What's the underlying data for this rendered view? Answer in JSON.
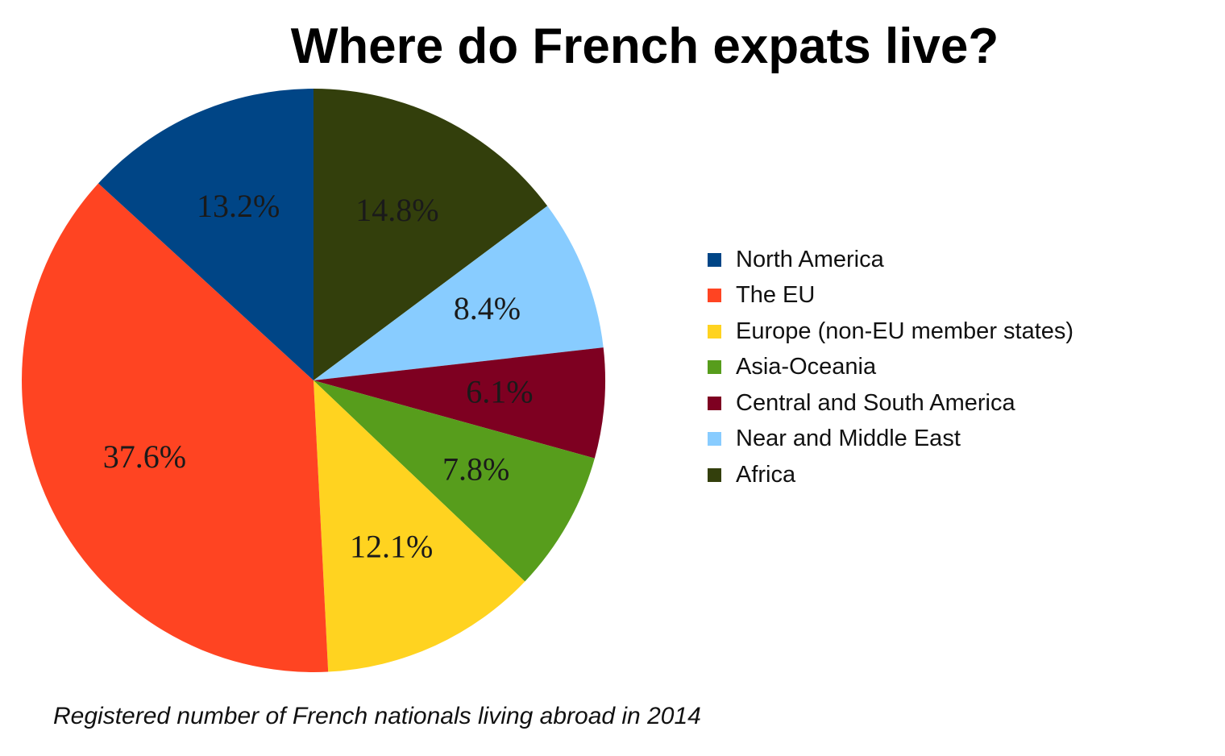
{
  "chart_data": {
    "type": "pie",
    "title": "Where do French expats live?",
    "caption": "Registered number of French nationals living abroad in 2014",
    "legend_position": "right",
    "start_angle_deg": 0,
    "direction": "clockwise",
    "slices": [
      {
        "label": "Africa",
        "value": 14.8,
        "value_label": "14.8%",
        "color": "#333F0C"
      },
      {
        "label": "Near and Middle East",
        "value": 8.4,
        "value_label": "8.4%",
        "color": "#88CCFF"
      },
      {
        "label": "Central and South America",
        "value": 6.1,
        "value_label": "6.1%",
        "color": "#7E0021"
      },
      {
        "label": "Asia-Oceania",
        "value": 7.8,
        "value_label": "7.8%",
        "color": "#579D1C"
      },
      {
        "label": "Europe (non-EU member states)",
        "value": 12.1,
        "value_label": "12.1%",
        "color": "#FFD320"
      },
      {
        "label": "The EU",
        "value": 37.6,
        "value_label": "37.6%",
        "color": "#FF4422"
      },
      {
        "label": "North America",
        "value": 13.2,
        "value_label": "13.2%",
        "color": "#004586"
      }
    ],
    "legend": [
      {
        "label": "North America",
        "color": "#004586"
      },
      {
        "label": "The EU",
        "color": "#FF4422"
      },
      {
        "label": "Europe (non-EU member states)",
        "color": "#FFD320"
      },
      {
        "label": "Asia-Oceania",
        "color": "#579D1C"
      },
      {
        "label": "Central and South America",
        "color": "#7E0021"
      },
      {
        "label": "Near and Middle East",
        "color": "#88CCFF"
      },
      {
        "label": "Africa",
        "color": "#333F0C"
      }
    ]
  }
}
